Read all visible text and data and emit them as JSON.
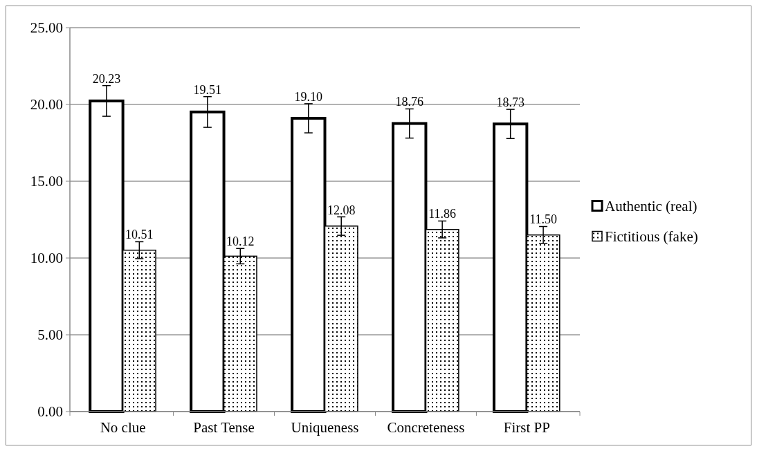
{
  "chart_data": {
    "type": "bar",
    "categories": [
      "No clue",
      "Past Tense",
      "Uniqueness",
      "Concreteness",
      "First PP"
    ],
    "series": [
      {
        "name": "Authentic (real)",
        "color": "#ffffff",
        "values": [
          20.23,
          19.51,
          19.1,
          18.76,
          18.73
        ],
        "value_labels": [
          "20.23",
          "19.51",
          "19.10",
          "18.76",
          "18.73"
        ],
        "errors": [
          1.0,
          1.0,
          0.95,
          0.95,
          0.95
        ]
      },
      {
        "name": "Fictitious (fake)",
        "color": "#000000",
        "values": [
          10.51,
          10.12,
          12.08,
          11.86,
          11.5
        ],
        "value_labels": [
          "10.51",
          "10.12",
          "12.08",
          "11.86",
          "11.50"
        ],
        "errors": [
          0.55,
          0.5,
          0.6,
          0.55,
          0.55
        ]
      }
    ],
    "ylim": [
      0,
      25
    ],
    "yticks": [
      {
        "value": 0,
        "label": "0.00"
      },
      {
        "value": 5,
        "label": "5.00"
      },
      {
        "value": 10,
        "label": "10.00"
      },
      {
        "value": 15,
        "label": "15.00"
      },
      {
        "value": 20,
        "label": "20.00"
      },
      {
        "value": 25,
        "label": "25.00"
      }
    ],
    "grid": "y",
    "legend": "right"
  }
}
